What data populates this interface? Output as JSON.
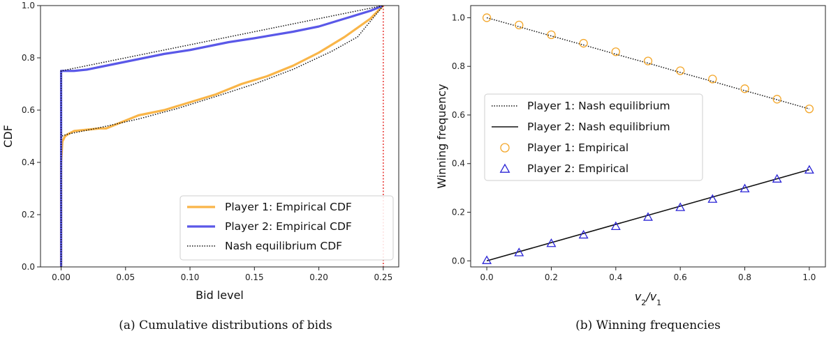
{
  "chart_data": [
    {
      "type": "line",
      "caption": "(a) Cumulative distributions of bids",
      "xlabel": "Bid level",
      "ylabel": "CDF",
      "xlim": [
        -0.016,
        0.262
      ],
      "ylim": [
        0.0,
        1.0
      ],
      "xticks": [
        0.0,
        0.05,
        0.1,
        0.15,
        0.2,
        0.25
      ],
      "xtick_labels": [
        "0.00",
        "0.05",
        "0.10",
        "0.15",
        "0.20",
        "0.25"
      ],
      "yticks": [
        0.0,
        0.2,
        0.4,
        0.6,
        0.8,
        1.0
      ],
      "ytick_labels": [
        "0.0",
        "0.2",
        "0.4",
        "0.6",
        "0.8",
        "1.0"
      ],
      "grid": false,
      "legend_position": "bottom-right",
      "vline": {
        "x": 0.25,
        "color": "#e8312d",
        "style": "dotted"
      },
      "series": [
        {
          "name": "Player 1: Empirical CDF",
          "color": "#f9b548",
          "style": "solid",
          "x": [
            0.0,
            0.0,
            0.001,
            0.003,
            0.006,
            0.01,
            0.02,
            0.03,
            0.035,
            0.05,
            0.06,
            0.08,
            0.1,
            0.12,
            0.14,
            0.16,
            0.18,
            0.2,
            0.22,
            0.24,
            0.25
          ],
          "y": [
            0.0,
            0.4,
            0.48,
            0.5,
            0.51,
            0.52,
            0.525,
            0.53,
            0.53,
            0.56,
            0.58,
            0.6,
            0.63,
            0.66,
            0.7,
            0.73,
            0.77,
            0.82,
            0.88,
            0.95,
            1.0
          ]
        },
        {
          "name": "Player 2: Empirical CDF",
          "color": "#5a58e8",
          "style": "solid",
          "x": [
            0.0,
            0.0,
            0.01,
            0.02,
            0.03,
            0.05,
            0.08,
            0.1,
            0.13,
            0.15,
            0.18,
            0.2,
            0.22,
            0.24,
            0.25
          ],
          "y": [
            0.0,
            0.75,
            0.75,
            0.755,
            0.765,
            0.785,
            0.815,
            0.83,
            0.86,
            0.875,
            0.9,
            0.92,
            0.95,
            0.98,
            1.0
          ]
        },
        {
          "name": "Nash equilibrium CDF",
          "color": "#111111",
          "style": "dotted",
          "x": [
            0.0,
            0.0,
            0.0,
            0.002,
            0.25
          ],
          "y": [
            0.0,
            0.5,
            0.75,
            0.75,
            1.0
          ],
          "segments": [
            {
              "x": [
                0.0,
                0.0,
                0.005,
                0.03,
                0.06,
                0.09,
                0.12,
                0.15,
                0.18,
                0.21,
                0.23,
                0.25
              ],
              "y": [
                0.0,
                0.5,
                0.508,
                0.533,
                0.566,
                0.606,
                0.652,
                0.7,
                0.756,
                0.825,
                0.88,
                1.0
              ]
            },
            {
              "x": [
                0.0,
                0.0,
                0.25
              ],
              "y": [
                0.0,
                0.75,
                1.0
              ]
            }
          ]
        }
      ]
    },
    {
      "type": "line",
      "caption": "(b) Winning frequencies",
      "xlabel": "v2/v1",
      "ylabel": "Winning frequency",
      "xlim": [
        -0.05,
        1.05
      ],
      "ylim": [
        -0.025,
        1.05
      ],
      "xticks": [
        0.0,
        0.2,
        0.4,
        0.6,
        0.8,
        1.0
      ],
      "xtick_labels": [
        "0.0",
        "0.2",
        "0.4",
        "0.6",
        "0.8",
        "1.0"
      ],
      "yticks": [
        0.0,
        0.2,
        0.4,
        0.6,
        0.8,
        1.0
      ],
      "ytick_labels": [
        "0.0",
        "0.2",
        "0.4",
        "0.6",
        "0.8",
        "1.0"
      ],
      "grid": false,
      "legend_position": "center-left",
      "series": [
        {
          "name": "Player 1: Nash equilibrium",
          "color": "#111111",
          "style": "dotted",
          "x": [
            0.0,
            0.1,
            0.2,
            0.3,
            0.4,
            0.5,
            0.6,
            0.7,
            0.8,
            0.9,
            1.0
          ],
          "y": [
            1.0,
            0.963,
            0.925,
            0.888,
            0.85,
            0.813,
            0.775,
            0.738,
            0.7,
            0.663,
            0.625
          ]
        },
        {
          "name": "Player 2: Nash equilibrium",
          "color": "#111111",
          "style": "solid",
          "x": [
            0.0,
            1.0
          ],
          "y": [
            0.0,
            0.375
          ]
        },
        {
          "name": "Player 1: Empirical",
          "color": "#f3a629",
          "marker": "circle",
          "x": [
            0.0,
            0.1,
            0.2,
            0.3,
            0.4,
            0.5,
            0.6,
            0.7,
            0.8,
            0.9,
            1.0
          ],
          "y": [
            1.0,
            0.97,
            0.93,
            0.895,
            0.86,
            0.822,
            0.782,
            0.748,
            0.708,
            0.665,
            0.625
          ]
        },
        {
          "name": "Player 2: Empirical",
          "color": "#2b25d6",
          "marker": "triangle",
          "x": [
            0.0,
            0.1,
            0.2,
            0.3,
            0.4,
            0.5,
            0.6,
            0.7,
            0.8,
            0.9,
            1.0
          ],
          "y": [
            0.0,
            0.032,
            0.07,
            0.105,
            0.14,
            0.178,
            0.218,
            0.252,
            0.295,
            0.335,
            0.372
          ]
        }
      ]
    }
  ]
}
